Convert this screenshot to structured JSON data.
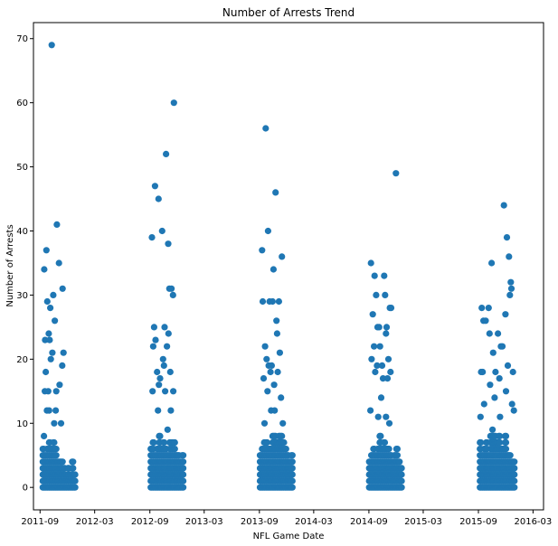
{
  "chart_data": {
    "type": "scatter",
    "title": "Number of Arrests Trend",
    "xlabel": "NFL Game Date",
    "ylabel": "Number of Arrests",
    "ylim": [
      -3.5,
      72.5
    ],
    "xlim": [
      "2011-08-10",
      "2016-04-05"
    ],
    "x_ticks": [
      {
        "date": "2011-09-01",
        "label": "2011-09"
      },
      {
        "date": "2012-03-01",
        "label": "2012-03"
      },
      {
        "date": "2012-09-01",
        "label": "2012-09"
      },
      {
        "date": "2013-03-01",
        "label": "2013-03"
      },
      {
        "date": "2013-09-01",
        "label": "2013-09"
      },
      {
        "date": "2014-03-01",
        "label": "2014-03"
      },
      {
        "date": "2014-09-01",
        "label": "2014-09"
      },
      {
        "date": "2015-03-01",
        "label": "2015-03"
      },
      {
        "date": "2015-09-01",
        "label": "2015-09"
      },
      {
        "date": "2016-03-01",
        "label": "2016-03"
      }
    ],
    "y_ticks": [
      0,
      10,
      20,
      30,
      40,
      50,
      60,
      70
    ],
    "grid": false,
    "marker_color": "#1f77b4",
    "seasons": [
      {
        "highlights": [
          [
            "2011-09-15",
            34
          ],
          [
            "2011-09-22",
            37
          ],
          [
            "2011-10-10",
            69
          ],
          [
            "2011-10-27",
            41
          ],
          [
            "2011-11-03",
            35
          ],
          [
            "2011-11-15",
            31
          ],
          [
            "2011-10-15",
            30
          ],
          [
            "2011-10-05",
            28
          ],
          [
            "2011-09-25",
            29
          ],
          [
            "2011-10-20",
            26
          ],
          [
            "2011-09-18",
            23
          ],
          [
            "2011-09-30",
            24
          ],
          [
            "2011-10-03",
            23
          ],
          [
            "2011-10-12",
            21
          ],
          [
            "2011-11-18",
            21
          ],
          [
            "2011-11-14",
            19
          ],
          [
            "2011-09-20",
            18
          ],
          [
            "2011-10-07",
            20
          ],
          [
            "2011-11-05",
            16
          ],
          [
            "2011-09-17",
            15
          ],
          [
            "2011-09-28",
            15
          ],
          [
            "2011-10-25",
            15
          ],
          [
            "2011-09-24",
            12
          ],
          [
            "2011-10-01",
            12
          ],
          [
            "2011-10-23",
            12
          ],
          [
            "2011-11-10",
            10
          ],
          [
            "2011-09-14",
            8
          ],
          [
            "2011-10-18",
            10
          ]
        ],
        "bulk": [
          [
            "2011-09-12",
            6
          ],
          [
            "2011-09-19",
            5
          ],
          [
            "2011-09-26",
            6
          ],
          [
            "2011-10-03",
            7
          ],
          [
            "2011-10-10",
            6
          ],
          [
            "2011-10-17",
            7
          ],
          [
            "2011-10-24",
            6
          ],
          [
            "2011-10-31",
            4
          ],
          [
            "2011-11-07",
            4
          ],
          [
            "2011-11-14",
            4
          ],
          [
            "2011-11-21",
            3
          ],
          [
            "2011-11-28",
            2
          ],
          [
            "2011-12-05",
            3
          ],
          [
            "2011-12-12",
            2
          ],
          [
            "2011-12-19",
            4
          ],
          [
            "2011-12-26",
            2
          ]
        ]
      },
      {
        "highlights": [
          [
            "2012-09-08",
            39
          ],
          [
            "2012-09-18",
            47
          ],
          [
            "2012-09-30",
            45
          ],
          [
            "2012-10-12",
            40
          ],
          [
            "2012-10-25",
            52
          ],
          [
            "2012-11-01",
            38
          ],
          [
            "2012-11-20",
            60
          ],
          [
            "2012-11-05",
            31
          ],
          [
            "2012-11-12",
            31
          ],
          [
            "2012-11-17",
            30
          ],
          [
            "2012-09-12",
            22
          ],
          [
            "2012-09-15",
            25
          ],
          [
            "2012-09-20",
            23
          ],
          [
            "2012-10-20",
            25
          ],
          [
            "2012-11-02",
            24
          ],
          [
            "2012-10-28",
            22
          ],
          [
            "2012-10-15",
            20
          ],
          [
            "2012-10-05",
            17
          ],
          [
            "2012-10-18",
            19
          ],
          [
            "2012-09-25",
            18
          ],
          [
            "2012-11-08",
            18
          ],
          [
            "2012-09-10",
            15
          ],
          [
            "2012-10-01",
            16
          ],
          [
            "2012-10-22",
            15
          ],
          [
            "2012-11-18",
            15
          ],
          [
            "2012-09-28",
            12
          ],
          [
            "2012-11-10",
            12
          ],
          [
            "2012-10-30",
            9
          ]
        ],
        "bulk": [
          [
            "2012-09-06",
            6
          ],
          [
            "2012-09-13",
            7
          ],
          [
            "2012-09-20",
            5
          ],
          [
            "2012-09-27",
            6
          ],
          [
            "2012-10-04",
            8
          ],
          [
            "2012-10-11",
            6
          ],
          [
            "2012-10-18",
            7
          ],
          [
            "2012-10-25",
            6
          ],
          [
            "2012-11-01",
            5
          ],
          [
            "2012-11-08",
            7
          ],
          [
            "2012-11-15",
            7
          ],
          [
            "2012-11-22",
            7
          ],
          [
            "2012-11-29",
            5
          ],
          [
            "2012-12-06",
            5
          ],
          [
            "2012-12-13",
            4
          ],
          [
            "2012-12-20",
            5
          ]
        ]
      },
      {
        "highlights": [
          [
            "2013-09-10",
            37
          ],
          [
            "2013-09-22",
            56
          ],
          [
            "2013-09-30",
            40
          ],
          [
            "2013-10-25",
            46
          ],
          [
            "2013-10-18",
            34
          ],
          [
            "2013-11-15",
            36
          ],
          [
            "2013-09-12",
            29
          ],
          [
            "2013-10-05",
            29
          ],
          [
            "2013-10-15",
            29
          ],
          [
            "2013-11-05",
            29
          ],
          [
            "2013-10-28",
            26
          ],
          [
            "2013-10-30",
            24
          ],
          [
            "2013-09-20",
            22
          ],
          [
            "2013-09-25",
            20
          ],
          [
            "2013-10-02",
            19
          ],
          [
            "2013-10-12",
            19
          ],
          [
            "2013-11-08",
            21
          ],
          [
            "2013-09-15",
            17
          ],
          [
            "2013-10-08",
            18
          ],
          [
            "2013-11-01",
            18
          ],
          [
            "2013-09-28",
            15
          ],
          [
            "2013-10-20",
            16
          ],
          [
            "2013-11-12",
            14
          ],
          [
            "2013-10-10",
            12
          ],
          [
            "2013-10-22",
            12
          ],
          [
            "2013-09-18",
            10
          ],
          [
            "2013-11-18",
            10
          ]
        ],
        "bulk": [
          [
            "2013-09-05",
            5
          ],
          [
            "2013-09-12",
            6
          ],
          [
            "2013-09-19",
            7
          ],
          [
            "2013-09-26",
            7
          ],
          [
            "2013-10-03",
            6
          ],
          [
            "2013-10-10",
            6
          ],
          [
            "2013-10-17",
            8
          ],
          [
            "2013-10-24",
            8
          ],
          [
            "2013-10-31",
            7
          ],
          [
            "2013-11-07",
            8
          ],
          [
            "2013-11-14",
            8
          ],
          [
            "2013-11-21",
            7
          ],
          [
            "2013-11-28",
            6
          ],
          [
            "2013-12-05",
            5
          ],
          [
            "2013-12-12",
            4
          ],
          [
            "2013-12-19",
            5
          ]
        ]
      },
      {
        "highlights": [
          [
            "2014-09-08",
            35
          ],
          [
            "2014-09-20",
            33
          ],
          [
            "2014-10-22",
            33
          ],
          [
            "2014-11-30",
            49
          ],
          [
            "2014-10-25",
            30
          ],
          [
            "2014-09-25",
            30
          ],
          [
            "2014-09-14",
            27
          ],
          [
            "2014-09-30",
            25
          ],
          [
            "2014-10-05",
            25
          ],
          [
            "2014-10-30",
            25
          ],
          [
            "2014-11-10",
            28
          ],
          [
            "2014-11-14",
            28
          ],
          [
            "2014-09-18",
            22
          ],
          [
            "2014-10-08",
            22
          ],
          [
            "2014-10-28",
            24
          ],
          [
            "2014-11-05",
            20
          ],
          [
            "2014-09-10",
            20
          ],
          [
            "2014-09-28",
            19
          ],
          [
            "2014-10-15",
            19
          ],
          [
            "2014-11-12",
            18
          ],
          [
            "2014-09-22",
            18
          ],
          [
            "2014-10-18",
            17
          ],
          [
            "2014-11-02",
            17
          ],
          [
            "2014-10-12",
            14
          ],
          [
            "2014-09-06",
            12
          ],
          [
            "2014-10-02",
            11
          ],
          [
            "2014-10-28",
            11
          ],
          [
            "2014-11-08",
            10
          ]
        ],
        "bulk": [
          [
            "2014-09-04",
            4
          ],
          [
            "2014-09-11",
            5
          ],
          [
            "2014-09-18",
            6
          ],
          [
            "2014-09-25",
            5
          ],
          [
            "2014-10-02",
            6
          ],
          [
            "2014-10-09",
            8
          ],
          [
            "2014-10-16",
            6
          ],
          [
            "2014-10-23",
            7
          ],
          [
            "2014-10-30",
            6
          ],
          [
            "2014-11-06",
            6
          ],
          [
            "2014-11-13",
            5
          ],
          [
            "2014-11-20",
            4
          ],
          [
            "2014-11-27",
            5
          ],
          [
            "2014-12-04",
            6
          ],
          [
            "2014-12-11",
            4
          ],
          [
            "2014-12-18",
            3
          ]
        ]
      },
      {
        "highlights": [
          [
            "2015-09-12",
            28
          ],
          [
            "2015-10-05",
            28
          ],
          [
            "2015-10-15",
            35
          ],
          [
            "2015-11-25",
            44
          ],
          [
            "2015-12-05",
            39
          ],
          [
            "2015-12-12",
            36
          ],
          [
            "2015-12-18",
            32
          ],
          [
            "2015-12-15",
            30
          ],
          [
            "2015-12-20",
            31
          ],
          [
            "2015-09-18",
            26
          ],
          [
            "2015-09-25",
            26
          ],
          [
            "2015-11-30",
            27
          ],
          [
            "2015-10-08",
            24
          ],
          [
            "2015-11-05",
            24
          ],
          [
            "2015-11-15",
            22
          ],
          [
            "2015-11-20",
            22
          ],
          [
            "2015-10-20",
            21
          ],
          [
            "2015-09-10",
            18
          ],
          [
            "2015-09-15",
            18
          ],
          [
            "2015-10-28",
            18
          ],
          [
            "2015-12-08",
            19
          ],
          [
            "2015-12-25",
            18
          ],
          [
            "2015-10-10",
            16
          ],
          [
            "2015-11-10",
            17
          ],
          [
            "2015-10-25",
            14
          ],
          [
            "2015-12-02",
            15
          ],
          [
            "2015-09-20",
            13
          ],
          [
            "2015-12-22",
            13
          ],
          [
            "2015-11-12",
            11
          ],
          [
            "2015-12-28",
            12
          ],
          [
            "2015-09-08",
            11
          ],
          [
            "2015-10-18",
            9
          ]
        ],
        "bulk": [
          [
            "2015-09-08",
            7
          ],
          [
            "2015-09-15",
            5
          ],
          [
            "2015-09-22",
            6
          ],
          [
            "2015-09-29",
            7
          ],
          [
            "2015-10-06",
            5
          ],
          [
            "2015-10-13",
            8
          ],
          [
            "2015-10-20",
            8
          ],
          [
            "2015-10-27",
            8
          ],
          [
            "2015-11-03",
            7
          ],
          [
            "2015-11-10",
            8
          ],
          [
            "2015-11-17",
            6
          ],
          [
            "2015-11-24",
            6
          ],
          [
            "2015-12-01",
            8
          ],
          [
            "2015-12-08",
            5
          ],
          [
            "2015-12-15",
            5
          ],
          [
            "2015-12-22",
            4
          ],
          [
            "2015-12-29",
            4
          ]
        ]
      }
    ]
  }
}
